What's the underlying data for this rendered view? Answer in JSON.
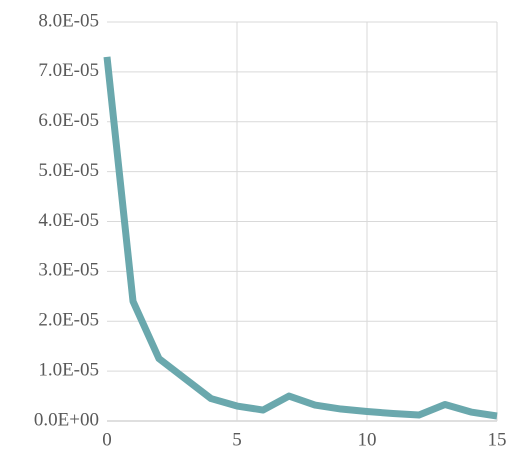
{
  "chart_data": {
    "type": "line",
    "x": [
      0,
      1,
      2,
      3,
      4,
      5,
      6,
      7,
      8,
      9,
      10,
      11,
      12,
      13,
      14,
      15
    ],
    "series": [
      {
        "color": "#6aa8ad",
        "values": [
          7.3e-05,
          2.4e-05,
          1.25e-05,
          8.5e-06,
          4.5e-06,
          3e-06,
          2.2e-06,
          5e-06,
          3.2e-06,
          2.4e-06,
          1.9e-06,
          1.5e-06,
          1.2e-06,
          3.3e-06,
          1.8e-06,
          1e-06
        ]
      }
    ],
    "xlim": [
      0,
      15
    ],
    "xticks": [
      0,
      5,
      10,
      15
    ],
    "ylim": [
      0,
      8e-05
    ],
    "yticks": [
      {
        "value": 0,
        "label": "0.0E+00"
      },
      {
        "value": 1e-05,
        "label": "1.0E-05"
      },
      {
        "value": 2e-05,
        "label": "2.0E-05"
      },
      {
        "value": 3e-05,
        "label": "3.0E-05"
      },
      {
        "value": 4e-05,
        "label": "4.0E-05"
      },
      {
        "value": 5e-05,
        "label": "5.0E-05"
      },
      {
        "value": 6e-05,
        "label": "6.0E-05"
      },
      {
        "value": 7e-05,
        "label": "7.0E-05"
      },
      {
        "value": 8e-05,
        "label": "8.0E-05"
      }
    ],
    "grid": true
  }
}
